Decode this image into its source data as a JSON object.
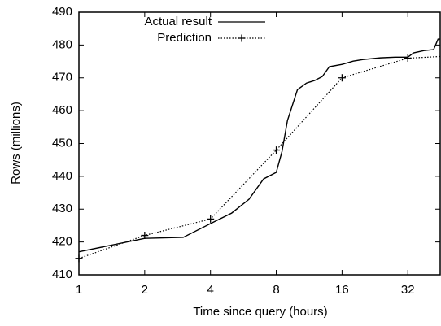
{
  "chart_data": {
    "type": "line",
    "xlabel": "Time since query (hours)",
    "ylabel": "Rows (millions)",
    "xscale": "log",
    "xlim": [
      1,
      45
    ],
    "xticks": [
      1,
      2,
      4,
      8,
      16,
      32
    ],
    "ylim": [
      410,
      490
    ],
    "yticks": [
      410,
      420,
      430,
      440,
      450,
      460,
      470,
      480,
      490
    ],
    "grid": false,
    "legend": "top",
    "series": [
      {
        "name": "Actual result",
        "color": "#000000",
        "style": "solid",
        "marker": "none",
        "x": [
          1,
          2,
          3,
          4,
          5,
          6,
          7,
          8,
          8.5,
          9,
          10,
          11,
          12,
          13,
          14,
          16,
          18,
          20,
          24,
          28,
          32,
          34,
          38,
          42,
          44,
          45
        ],
        "values": [
          417,
          421.1,
          421.4,
          425.6,
          428.8,
          433,
          439.2,
          441.2,
          447.6,
          457,
          466.4,
          468.4,
          469.2,
          470.4,
          473.4,
          474.1,
          475.1,
          475.6,
          476.1,
          476.3,
          476.3,
          477.6,
          478.3,
          478.6,
          481.8,
          481.8
        ]
      },
      {
        "name": "Prediction",
        "color": "#000000",
        "style": "dotted",
        "marker": "plus",
        "x": [
          1,
          2,
          4,
          8,
          16,
          32,
          45
        ],
        "values": [
          415,
          422,
          427,
          448,
          470,
          476,
          476.5
        ]
      }
    ]
  }
}
